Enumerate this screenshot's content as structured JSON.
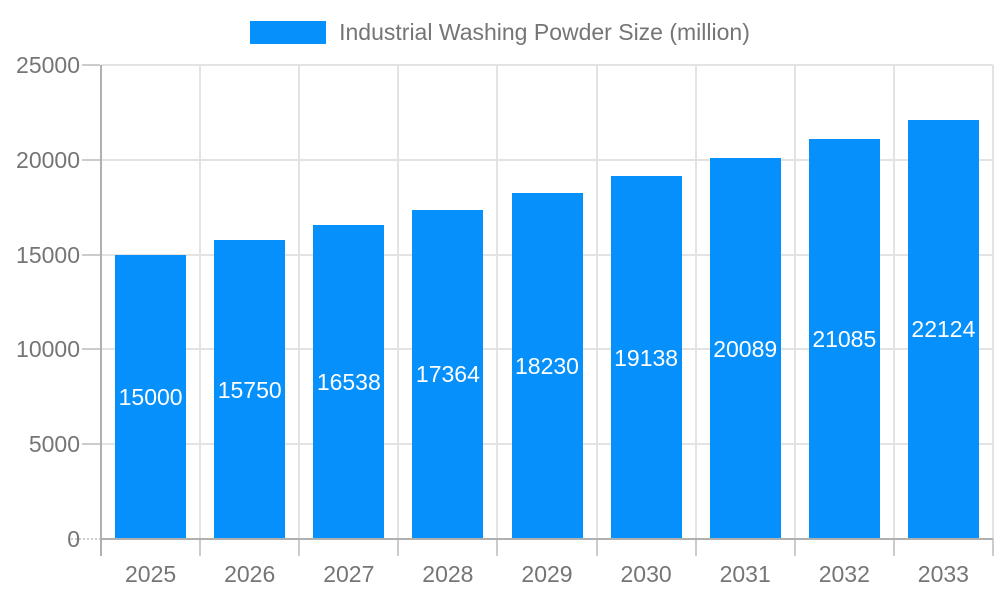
{
  "chart_data": {
    "type": "bar",
    "title": "Industrial Washing Powder Size (million)",
    "categories": [
      "2025",
      "2026",
      "2027",
      "2028",
      "2029",
      "2030",
      "2031",
      "2032",
      "2033"
    ],
    "values": [
      15000,
      15750,
      16538,
      17364,
      18230,
      19138,
      20089,
      21085,
      22124
    ],
    "bar_value_labels": [
      "15000",
      "15750",
      "16538",
      "17364",
      "18230",
      "19138",
      "20089",
      "21085",
      "22124"
    ],
    "xlabel": "",
    "ylabel": "",
    "ylim": [
      0,
      25000
    ],
    "yticks": [
      0,
      5000,
      10000,
      15000,
      20000,
      25000
    ],
    "grid": true,
    "value_label_position": "inside-middle",
    "legend": {
      "position": "top",
      "label": "Industrial Washing Powder Size (million)"
    },
    "colors": {
      "bar": "#0590FB",
      "bar_label": "#FFFFFF",
      "axis_text": "#757575",
      "legend_text": "#757575",
      "gridline": "#E3E3E3",
      "tick": "#CCCCCC",
      "axis_line": "#B0B0B0",
      "background": "#FFFFFF"
    }
  }
}
